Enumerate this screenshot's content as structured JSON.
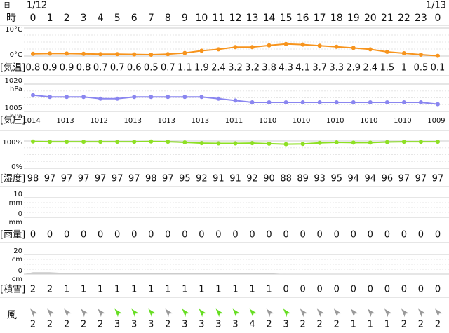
{
  "header": {
    "day_label": "日",
    "hour_label": "時",
    "dates": [
      "1/12",
      "1/13"
    ],
    "hours": [
      0,
      1,
      2,
      3,
      4,
      5,
      6,
      7,
      8,
      9,
      10,
      11,
      12,
      13,
      14,
      15,
      16,
      17,
      18,
      19,
      20,
      21,
      22,
      23,
      0
    ]
  },
  "temperature": {
    "label": "[気温]",
    "color": "#f7941d",
    "ticks": [
      {
        "value": 10,
        "label": "10°C"
      },
      {
        "value": 0,
        "label": "0°C"
      }
    ],
    "values": [
      0.8,
      0.9,
      0.9,
      0.8,
      0.7,
      0.7,
      0.6,
      0.5,
      0.7,
      1.1,
      1.9,
      2.4,
      3.2,
      3.2,
      3.8,
      4.3,
      4.1,
      3.7,
      3.3,
      2.9,
      2.4,
      1.5,
      1,
      0.5,
      0.1
    ]
  },
  "pressure": {
    "label": "[気圧]",
    "color": "#8a86f0",
    "unit": "hPa",
    "ticks": [
      1020,
      1005
    ],
    "values": [
      1014,
      1013,
      1013,
      1013,
      1012,
      1012,
      1013,
      1013,
      1013,
      1013,
      1013,
      1012,
      1011,
      1010,
      1010,
      1010,
      1010,
      1010,
      1010,
      1010,
      1010,
      1010,
      1010,
      1010,
      1009
    ],
    "value_labels": [
      "1014",
      null,
      "1013",
      null,
      "1012",
      null,
      "1013",
      null,
      "1013",
      null,
      "1013",
      null,
      "1011",
      null,
      "1010",
      null,
      "1010",
      null,
      "1010",
      null,
      "1010",
      null,
      "1010",
      null,
      "1009"
    ]
  },
  "humidity": {
    "label": "[湿度]",
    "color": "#8ee024",
    "ticks": [
      {
        "value": 100,
        "label": "100%"
      },
      {
        "value": 0,
        "label": "0%"
      }
    ],
    "values": [
      98,
      97,
      97,
      97,
      97,
      97,
      97,
      98,
      97,
      95,
      92,
      91,
      91,
      92,
      90,
      88,
      89,
      93,
      95,
      94,
      94,
      96,
      97,
      97,
      97
    ]
  },
  "precipitation": {
    "label": "[雨量]",
    "unit": "mm",
    "ticks": [
      10,
      0
    ],
    "values": [
      0,
      0,
      0,
      0,
      0,
      0,
      0,
      0,
      0,
      0,
      0,
      0,
      0,
      0,
      0,
      0,
      0,
      0,
      0,
      0,
      0,
      0,
      0,
      0,
      0
    ]
  },
  "snow": {
    "label": "[積雪]",
    "unit": "cm",
    "color": "#cccccc",
    "ticks": [
      20,
      0
    ],
    "values": [
      2,
      2,
      1,
      1,
      1,
      1,
      1,
      1,
      1,
      1,
      1,
      1,
      1,
      1,
      1,
      0,
      0,
      0,
      0,
      0,
      0,
      0,
      0,
      0,
      0
    ]
  },
  "wind": {
    "label": "風",
    "speeds": [
      2,
      2,
      2,
      2,
      2,
      3,
      3,
      3,
      2,
      3,
      3,
      3,
      3,
      4,
      2,
      3,
      2,
      2,
      2,
      1,
      1,
      1,
      2,
      2,
      2
    ]
  }
}
